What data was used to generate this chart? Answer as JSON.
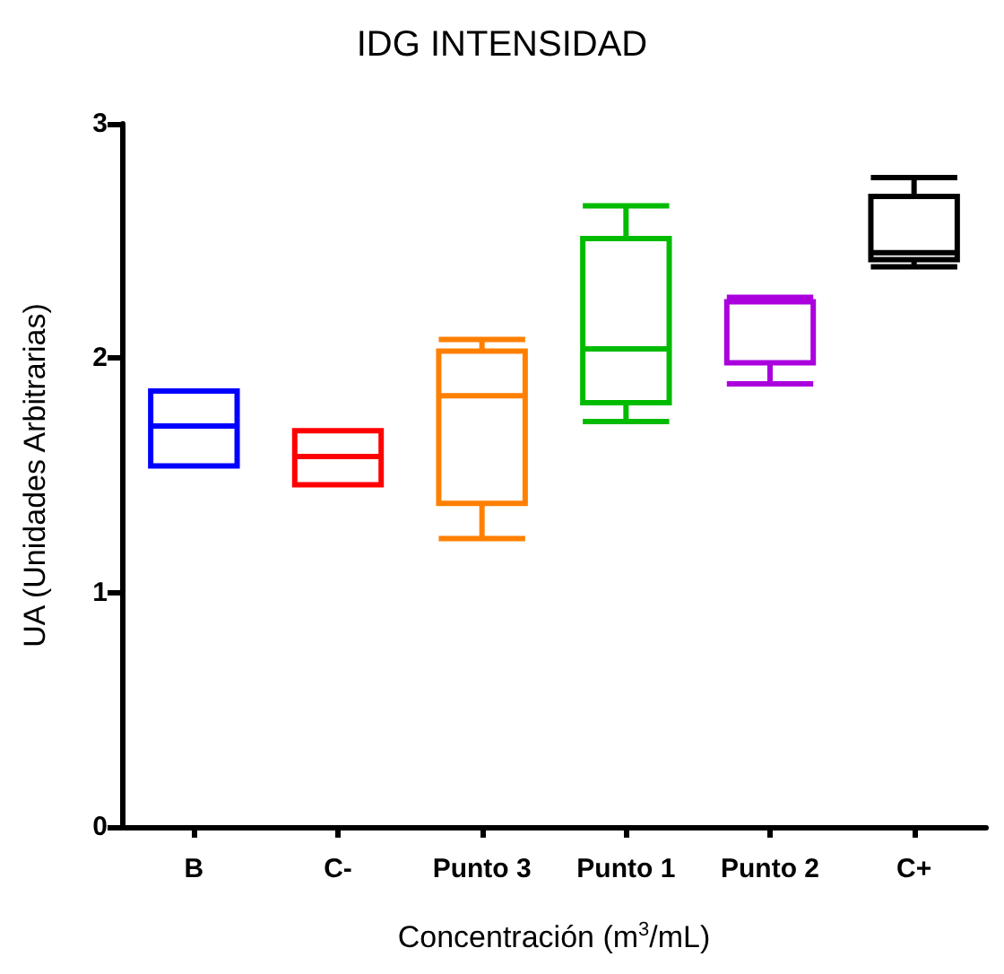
{
  "chart_data": {
    "type": "box",
    "title": "IDG INTENSIDAD",
    "xlabel": "Concentración (m$^{3}$/mL)",
    "ylabel": "UA (Unidades Arbitrarias)",
    "categories": [
      "B",
      "C-",
      "Punto 3",
      "Punto 1",
      "Punto 2",
      "C+"
    ],
    "colors": [
      "#0000ff",
      "#ff0000",
      "#ff8000",
      "#00bb00",
      "#aa00dd",
      "#000000"
    ],
    "boxes": [
      {
        "low": 1.54,
        "q1": 1.54,
        "median": 1.71,
        "q3": 1.86,
        "high": 1.86
      },
      {
        "low": 1.46,
        "q1": 1.46,
        "median": 1.58,
        "q3": 1.69,
        "high": 1.69
      },
      {
        "low": 1.23,
        "q1": 1.38,
        "median": 1.84,
        "q3": 2.03,
        "high": 2.08
      },
      {
        "low": 1.73,
        "q1": 1.81,
        "median": 2.04,
        "q3": 2.51,
        "high": 2.65
      },
      {
        "low": 1.89,
        "q1": 1.98,
        "median": 2.24,
        "q3": 2.24,
        "high": 2.26
      },
      {
        "low": 2.39,
        "q1": 2.42,
        "median": 2.45,
        "q3": 2.69,
        "high": 2.77
      }
    ],
    "ylim": [
      0,
      3
    ],
    "yticks": [
      0,
      1,
      2,
      3
    ],
    "grid": false
  }
}
